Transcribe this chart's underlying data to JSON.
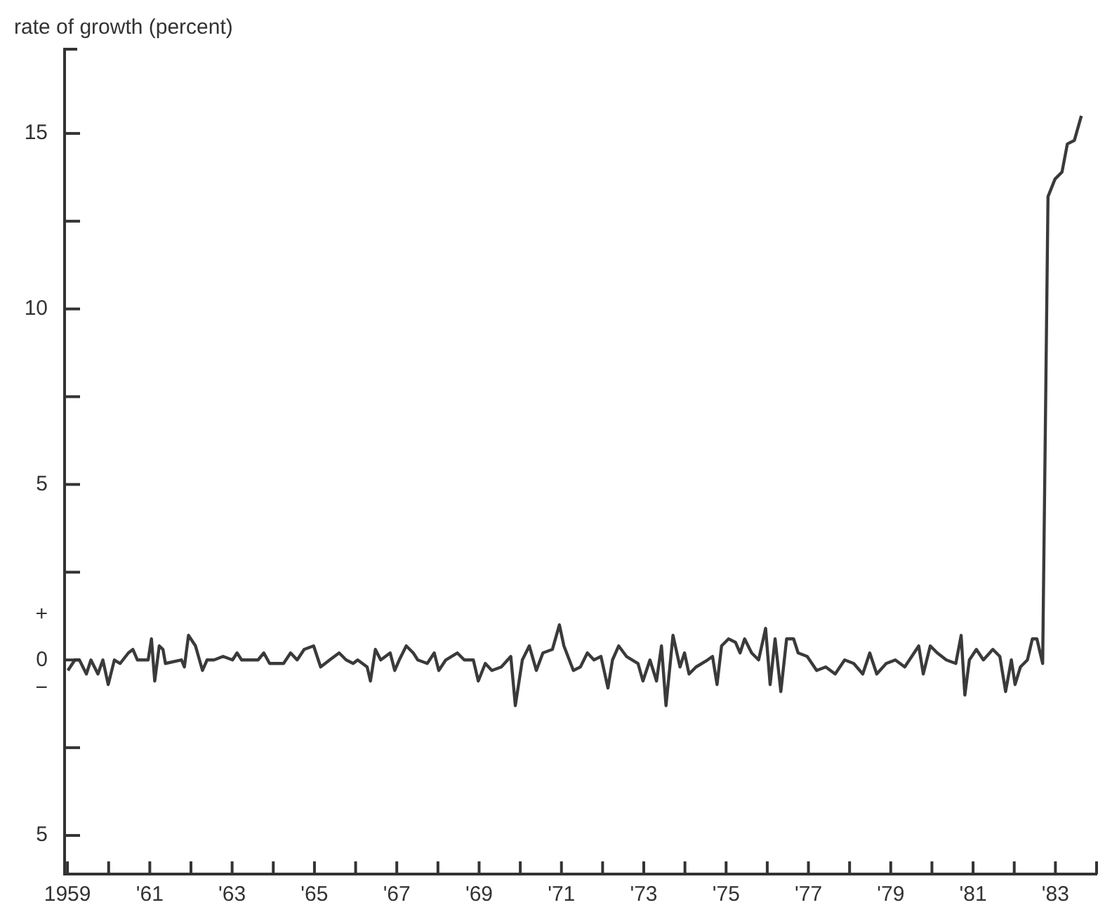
{
  "chart_data": {
    "type": "line",
    "ylabel": "rate of growth (percent)",
    "color": "#3a3a3a",
    "marker": "none",
    "line_style": "solid",
    "legend": false,
    "grid": false,
    "xlim": [
      1958.93,
      1984
    ],
    "ylim": [
      -6.1,
      17.4
    ],
    "xticks": [
      1959,
      {
        "value": 1960,
        "label": null
      },
      {
        "value": 1961,
        "label": "'61"
      },
      {
        "value": 1962,
        "label": null
      },
      {
        "value": 1963,
        "label": "'63"
      },
      {
        "value": 1964,
        "label": null
      },
      {
        "value": 1965,
        "label": "'65"
      },
      {
        "value": 1966,
        "label": null
      },
      {
        "value": 1967,
        "label": "'67"
      },
      {
        "value": 1968,
        "label": null
      },
      {
        "value": 1969,
        "label": "'69"
      },
      {
        "value": 1970,
        "label": null
      },
      {
        "value": 1971,
        "label": "'71"
      },
      {
        "value": 1972,
        "label": null
      },
      {
        "value": 1973,
        "label": "'73"
      },
      {
        "value": 1974,
        "label": null
      },
      {
        "value": 1975,
        "label": "'75"
      },
      {
        "value": 1976,
        "label": null
      },
      {
        "value": 1977,
        "label": "'77"
      },
      {
        "value": 1978,
        "label": null
      },
      {
        "value": 1979,
        "label": "'79"
      },
      {
        "value": 1980,
        "label": null
      },
      {
        "value": 1981,
        "label": "'81"
      },
      {
        "value": 1982,
        "label": null
      },
      {
        "value": 1983,
        "label": "'83"
      },
      {
        "value": 1984,
        "label": null
      }
    ],
    "yticks": [
      {
        "value": -5,
        "label": "5"
      },
      {
        "value": -2.5,
        "label": null
      },
      {
        "value": -0.8,
        "label": "−"
      },
      0,
      {
        "value": 1.3,
        "label": "+"
      },
      {
        "value": 2.5,
        "label": null
      },
      5,
      {
        "value": 7.5,
        "label": null
      },
      10,
      {
        "value": 12.5,
        "label": null
      },
      15
    ],
    "x": [
      1959.01,
      1959.18,
      1959.29,
      1959.46,
      1959.57,
      1959.74,
      1959.86,
      1959.99,
      1960.14,
      1960.28,
      1960.48,
      1960.59,
      1960.7,
      1960.96,
      1961.04,
      1961.12,
      1961.23,
      1961.32,
      1961.38,
      1961.77,
      1961.84,
      1961.94,
      1962.11,
      1962.28,
      1962.39,
      1962.56,
      1962.78,
      1963.01,
      1963.12,
      1963.23,
      1963.52,
      1963.63,
      1963.77,
      1963.91,
      1964.25,
      1964.42,
      1964.58,
      1964.75,
      1964.98,
      1965.15,
      1965.37,
      1965.6,
      1965.77,
      1965.94,
      1966.05,
      1966.28,
      1966.36,
      1966.48,
      1966.61,
      1966.84,
      1966.95,
      1967.06,
      1967.23,
      1967.4,
      1967.51,
      1967.74,
      1967.91,
      1968.02,
      1968.19,
      1968.47,
      1968.64,
      1968.86,
      1968.98,
      1969.15,
      1969.31,
      1969.54,
      1969.77,
      1969.88,
      1970.05,
      1970.22,
      1970.39,
      1970.55,
      1970.78,
      1970.95,
      1971.06,
      1971.29,
      1971.46,
      1971.63,
      1971.79,
      1971.96,
      1972.13,
      1972.24,
      1972.39,
      1972.58,
      1972.86,
      1972.98,
      1973.15,
      1973.31,
      1973.43,
      1973.54,
      1973.71,
      1973.88,
      1973.99,
      1974.1,
      1974.27,
      1974.55,
      1974.67,
      1974.78,
      1974.89,
      1975.06,
      1975.23,
      1975.34,
      1975.45,
      1975.62,
      1975.79,
      1975.96,
      1976.07,
      1976.19,
      1976.33,
      1976.47,
      1976.64,
      1976.75,
      1976.97,
      1977.2,
      1977.42,
      1977.65,
      1977.88,
      1978.1,
      1978.32,
      1978.49,
      1978.66,
      1978.89,
      1979.11,
      1979.34,
      1979.51,
      1979.68,
      1979.79,
      1979.96,
      1980.13,
      1980.35,
      1980.58,
      1980.71,
      1980.8,
      1980.91,
      1981.08,
      1981.25,
      1981.48,
      1981.65,
      1981.79,
      1981.93,
      1982.02,
      1982.15,
      1982.32,
      1982.44,
      1982.55,
      1982.69,
      1982.82,
      1982.99,
      1983.16,
      1983.29,
      1983.46,
      1983.63
    ],
    "values": [
      -0.3,
      0.0,
      0.0,
      -0.4,
      0.0,
      -0.4,
      0.0,
      -0.7,
      0.0,
      -0.1,
      0.2,
      0.3,
      0.0,
      0.0,
      0.6,
      -0.6,
      0.4,
      0.3,
      -0.1,
      0.0,
      -0.2,
      0.7,
      0.4,
      -0.3,
      0.0,
      0.0,
      0.1,
      0.0,
      0.2,
      0.0,
      0.0,
      0.0,
      0.2,
      -0.1,
      -0.1,
      0.2,
      0.0,
      0.3,
      0.4,
      -0.2,
      0.0,
      0.2,
      0.0,
      -0.1,
      0.0,
      -0.2,
      -0.6,
      0.3,
      0.0,
      0.2,
      -0.3,
      0.0,
      0.4,
      0.2,
      0.0,
      -0.1,
      0.2,
      -0.3,
      0.0,
      0.2,
      0.0,
      0.0,
      -0.6,
      -0.1,
      -0.3,
      -0.2,
      0.1,
      -1.3,
      0.0,
      0.4,
      -0.3,
      0.2,
      0.3,
      1.0,
      0.4,
      -0.3,
      -0.2,
      0.2,
      0.0,
      0.1,
      -0.8,
      0.0,
      0.4,
      0.1,
      -0.1,
      -0.6,
      0.0,
      -0.6,
      0.4,
      -1.3,
      0.7,
      -0.2,
      0.2,
      -0.4,
      -0.2,
      0.0,
      0.1,
      -0.7,
      0.4,
      0.6,
      0.5,
      0.2,
      0.6,
      0.2,
      0.0,
      0.9,
      -0.7,
      0.6,
      -0.9,
      0.6,
      0.6,
      0.2,
      0.1,
      -0.3,
      -0.2,
      -0.4,
      0.0,
      -0.1,
      -0.4,
      0.2,
      -0.4,
      -0.1,
      0.0,
      -0.2,
      0.1,
      0.4,
      -0.4,
      0.4,
      0.2,
      0.0,
      -0.1,
      0.7,
      -1.0,
      0.0,
      0.3,
      0.0,
      0.3,
      0.1,
      -0.9,
      0.0,
      -0.7,
      -0.2,
      0.0,
      0.6,
      0.6,
      -0.1,
      13.2,
      13.7,
      13.9,
      14.7,
      14.8,
      15.5
    ]
  }
}
